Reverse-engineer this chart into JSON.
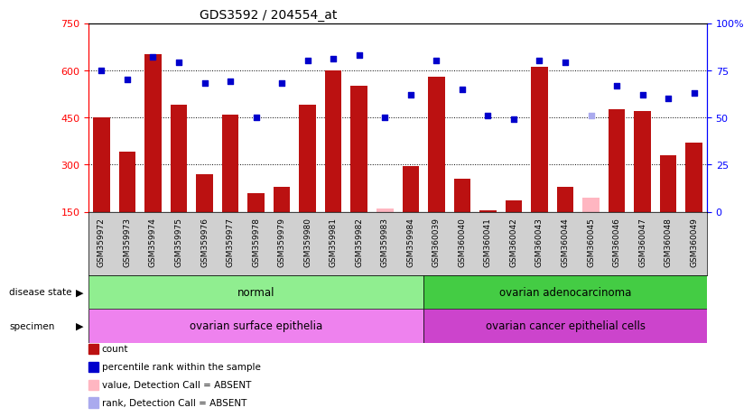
{
  "title": "GDS3592 / 204554_at",
  "samples": [
    "GSM359972",
    "GSM359973",
    "GSM359974",
    "GSM359975",
    "GSM359976",
    "GSM359977",
    "GSM359978",
    "GSM359979",
    "GSM359980",
    "GSM359981",
    "GSM359982",
    "GSM359983",
    "GSM359984",
    "GSM360039",
    "GSM360040",
    "GSM360041",
    "GSM360042",
    "GSM360043",
    "GSM360044",
    "GSM360045",
    "GSM360046",
    "GSM360047",
    "GSM360048",
    "GSM360049"
  ],
  "counts": [
    450,
    340,
    650,
    490,
    270,
    460,
    210,
    230,
    490,
    600,
    550,
    160,
    295,
    580,
    255,
    155,
    185,
    610,
    230,
    195,
    475,
    470,
    330,
    370
  ],
  "absent_count": [
    false,
    false,
    false,
    false,
    false,
    false,
    false,
    false,
    false,
    false,
    false,
    true,
    false,
    false,
    false,
    false,
    false,
    false,
    false,
    true,
    false,
    false,
    false,
    false
  ],
  "percentile_ranks": [
    75,
    70,
    82,
    79,
    68,
    69,
    50,
    68,
    80,
    81,
    83,
    50,
    62,
    80,
    65,
    51,
    49,
    80,
    79,
    51,
    67,
    62,
    60,
    63
  ],
  "absent_rank": [
    false,
    false,
    false,
    false,
    false,
    false,
    false,
    false,
    false,
    false,
    false,
    false,
    false,
    false,
    false,
    false,
    false,
    false,
    false,
    true,
    false,
    false,
    false,
    false
  ],
  "disease_state_split": 13,
  "disease_state_labels": [
    "normal",
    "ovarian adenocarcinoma"
  ],
  "specimen_labels": [
    "ovarian surface epithelia",
    "ovarian cancer epithelial cells"
  ],
  "ds_left_color": "#90EE90",
  "ds_right_color": "#44CC44",
  "sp_left_color": "#EE82EE",
  "sp_right_color": "#CC44CC",
  "bar_color_present": "#BB1111",
  "bar_color_absent": "#FFB6C1",
  "rank_color_present": "#0000CC",
  "rank_color_absent": "#AAAAEE",
  "ylim_left": [
    150,
    750
  ],
  "ylim_right": [
    0,
    100
  ],
  "yticks_left": [
    150,
    300,
    450,
    600,
    750
  ],
  "yticks_right": [
    0,
    25,
    50,
    75,
    100
  ],
  "dotted_vals": [
    300,
    450,
    600
  ],
  "xticklabel_bg": "#D0D0D0"
}
